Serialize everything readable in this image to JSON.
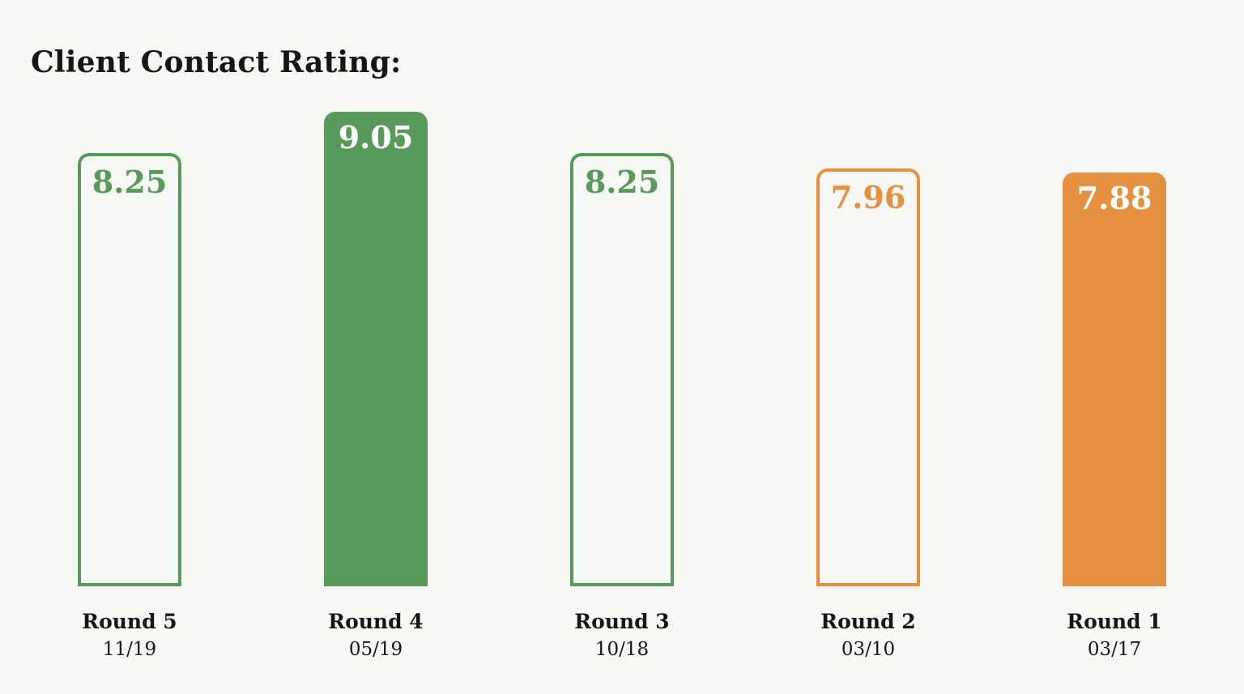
{
  "title": "Client Contact Rating:",
  "colors": {
    "background": "#f7f7f5",
    "text": "#161616",
    "green": "#579a5a",
    "orange": "#e5913f",
    "filled_value_text": "#ffffff"
  },
  "chart_data": {
    "type": "bar",
    "title": "Client Contact Rating:",
    "categories": [
      "Round 5",
      "Round 4",
      "Round 3",
      "Round 2",
      "Round 1"
    ],
    "dates": [
      "11/19",
      "05/19",
      "10/18",
      "03/10",
      "03/17"
    ],
    "values": [
      8.25,
      9.05,
      8.25,
      7.96,
      7.88
    ],
    "value_labels": [
      "8.25",
      "9.05",
      "8.25",
      "7.96",
      "7.88"
    ],
    "bar_styles": [
      "outline",
      "filled",
      "outline",
      "outline",
      "filled"
    ],
    "bar_colors": [
      "green",
      "green",
      "green",
      "orange",
      "orange"
    ],
    "ylim": [
      0,
      9.05
    ],
    "grid": false,
    "legend": false,
    "orientation": "vertical",
    "baseline_aligned": true
  }
}
